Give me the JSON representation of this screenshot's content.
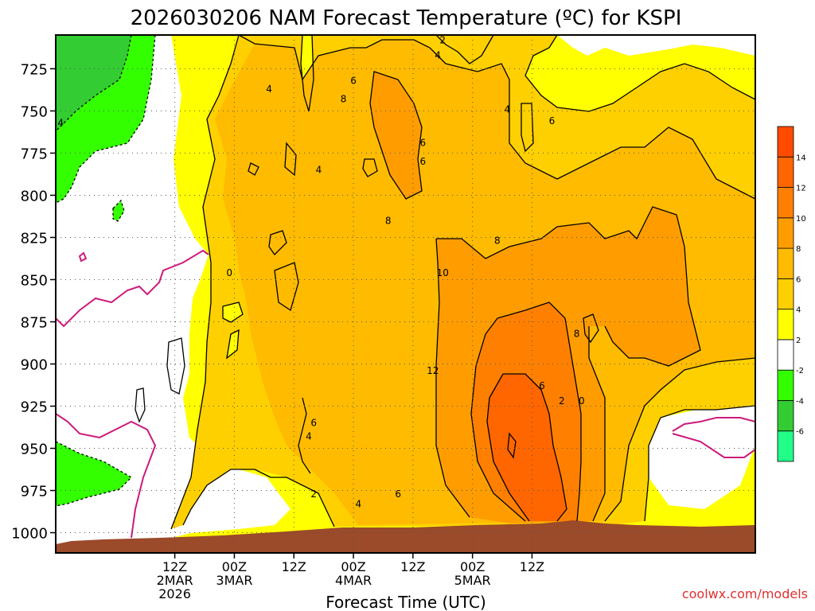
{
  "title": "2026030206 NAM Forecast Temperature (ºC) for KSPI",
  "xlabel": "Forecast Time (UTC)",
  "credit": "coolwx.com/models",
  "colors": {
    "ground": "#9b4a2a",
    "zero_line": "#cc1a7a",
    "contour": "#000000",
    "neg4_neg2": "#33ff00",
    "neg6_neg4": "#33cc33",
    "below_neg6": "#22ff88",
    "neg2_2": "#ffffff",
    "2_4": "#ffff00",
    "4_6": "#ffd000",
    "6_8": "#ffbb00",
    "8_10": "#ff9d00",
    "10_12": "#ff8000",
    "12_14": "#ff6600",
    "above_14": "#ff4a00"
  },
  "chart_data": {
    "type": "heatmap",
    "title": "2026030206 NAM Forecast Temperature (ºC) for KSPI",
    "xlabel": "Forecast Time (UTC)",
    "ylabel": "",
    "y_axis": {
      "unit": "mb",
      "inverted": true,
      "ylim": [
        1012,
        705
      ],
      "ticks": [
        725,
        750,
        775,
        800,
        825,
        850,
        875,
        900,
        925,
        950,
        975,
        1000
      ]
    },
    "x_axis": {
      "xlim": [
        -18,
        123
      ],
      "ticks": [
        {
          "hour": 6,
          "line1": "12Z",
          "line2": "2MAR",
          "line3": "2026"
        },
        {
          "hour": 18,
          "line1": "00Z",
          "line2": "3MAR",
          "line3": ""
        },
        {
          "hour": 30,
          "line1": "12Z",
          "line2": "",
          "line3": ""
        },
        {
          "hour": 42,
          "line1": "00Z",
          "line2": "4MAR",
          "line3": ""
        },
        {
          "hour": 54,
          "line1": "12Z",
          "line2": "",
          "line3": ""
        },
        {
          "hour": 66,
          "line1": "00Z",
          "line2": "5MAR",
          "line3": ""
        },
        {
          "hour": 78,
          "line1": "12Z",
          "line2": "",
          "line3": ""
        }
      ]
    },
    "grid": true,
    "colorbar": {
      "position": "right",
      "bounds": [
        -8,
        -6,
        -4,
        -2,
        2,
        4,
        6,
        8,
        10,
        12,
        14,
        16
      ],
      "tick_labels": [
        "-6",
        "-4",
        "-2",
        "2",
        "4",
        "6",
        "8",
        "10",
        "12",
        "14"
      ]
    },
    "contour_labels": [
      {
        "text": "4",
        "hour": -17,
        "p": 757
      },
      {
        "text": "2",
        "hour": 60,
        "p": 708
      },
      {
        "text": "4",
        "hour": 59,
        "p": 717
      },
      {
        "text": "4",
        "hour": 25,
        "p": 737
      },
      {
        "text": "6",
        "hour": 42,
        "p": 732
      },
      {
        "text": "8",
        "hour": 40,
        "p": 743
      },
      {
        "text": "4",
        "hour": 73,
        "p": 749
      },
      {
        "text": "6",
        "hour": 82,
        "p": 756
      },
      {
        "text": "6",
        "hour": 56,
        "p": 769
      },
      {
        "text": "6",
        "hour": 56,
        "p": 780
      },
      {
        "text": "4",
        "hour": 35,
        "p": 785
      },
      {
        "text": "8",
        "hour": 49,
        "p": 815
      },
      {
        "text": "8",
        "hour": 71,
        "p": 827
      },
      {
        "text": "0",
        "hour": 17,
        "p": 846
      },
      {
        "text": "10",
        "hour": 60,
        "p": 846
      },
      {
        "text": "8",
        "hour": 87,
        "p": 882
      },
      {
        "text": "12",
        "hour": 58,
        "p": 904
      },
      {
        "text": "6",
        "hour": 80,
        "p": 913
      },
      {
        "text": "2",
        "hour": 84,
        "p": 922
      },
      {
        "text": "0",
        "hour": 88,
        "p": 922
      },
      {
        "text": "6",
        "hour": 34,
        "p": 935
      },
      {
        "text": "4",
        "hour": 33,
        "p": 943
      },
      {
        "text": "2",
        "hour": 34,
        "p": 977
      },
      {
        "text": "6",
        "hour": 51,
        "p": 977
      },
      {
        "text": "4",
        "hour": 43,
        "p": 983
      }
    ]
  }
}
